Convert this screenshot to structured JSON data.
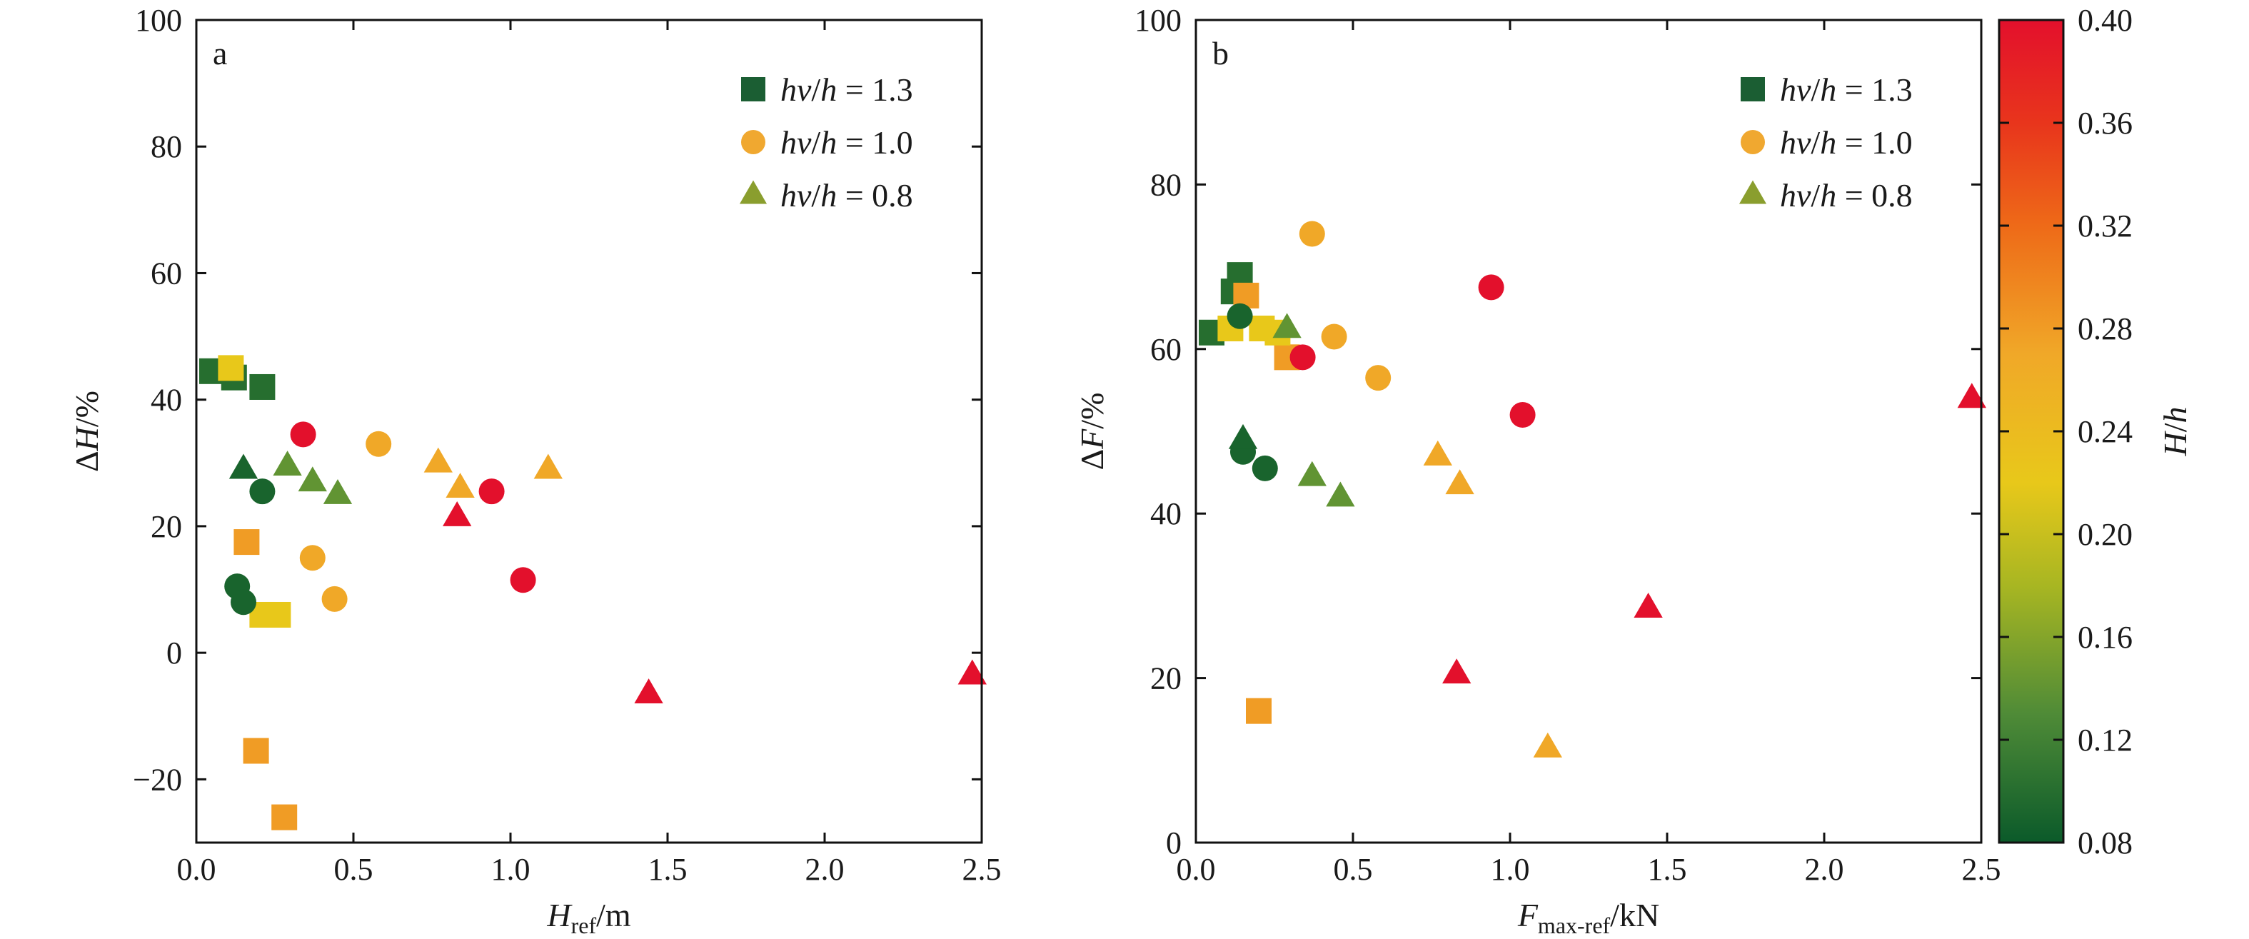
{
  "chart_data": [
    {
      "type": "scatter",
      "panel_label": "a",
      "xlabel_parts": [
        "H",
        "ref",
        "/m"
      ],
      "ylabel_parts": [
        "Δ",
        "H",
        "/%"
      ],
      "xlim": [
        0,
        2.5
      ],
      "ylim": [
        -30,
        100
      ],
      "xticks": [
        0,
        0.5,
        1.0,
        1.5,
        2.0,
        2.5
      ],
      "xtick_labels": [
        "0.0",
        "0.5",
        "1.0",
        "1.5",
        "2.0",
        "2.5"
      ],
      "yticks": [
        -20,
        0,
        20,
        40,
        60,
        80,
        100
      ],
      "ytick_labels": [
        "−20",
        "0",
        "20",
        "40",
        "60",
        "80",
        "100"
      ],
      "legend_position": "top-right",
      "grid": false,
      "series": [
        {
          "name": "hv/h = 1.3",
          "name_parts": [
            "hv",
            "/",
            "h",
            " = 1.3"
          ],
          "marker": "square",
          "legend_color": "#1b5e33",
          "points": [
            {
              "x": 0.05,
              "y": 44.5,
              "hh": 0.1
            },
            {
              "x": 0.12,
              "y": 43.5,
              "hh": 0.1
            },
            {
              "x": 0.21,
              "y": 42.0,
              "hh": 0.1
            },
            {
              "x": 0.19,
              "y": -15.5,
              "hh": 0.28
            },
            {
              "x": 0.16,
              "y": 17.5,
              "hh": 0.28
            },
            {
              "x": 0.28,
              "y": -26.0,
              "hh": 0.28
            },
            {
              "x": 0.11,
              "y": 45.0,
              "hh": 0.22
            },
            {
              "x": 0.21,
              "y": 6.0,
              "hh": 0.22
            },
            {
              "x": 0.26,
              "y": 6.0,
              "hh": 0.22
            }
          ]
        },
        {
          "name": "hv/h = 1.0",
          "name_parts": [
            "hv",
            "/",
            "h",
            " = 1.0"
          ],
          "marker": "circle",
          "legend_color": "#f0a830",
          "points": [
            {
              "x": 0.13,
              "y": 10.5,
              "hh": 0.09
            },
            {
              "x": 0.15,
              "y": 8.0,
              "hh": 0.09
            },
            {
              "x": 0.21,
              "y": 25.5,
              "hh": 0.09
            },
            {
              "x": 0.37,
              "y": 15.0,
              "hh": 0.27
            },
            {
              "x": 0.44,
              "y": 8.5,
              "hh": 0.27
            },
            {
              "x": 0.58,
              "y": 33.0,
              "hh": 0.27
            },
            {
              "x": 0.34,
              "y": 34.5,
              "hh": 0.4
            },
            {
              "x": 0.94,
              "y": 25.5,
              "hh": 0.4
            },
            {
              "x": 1.04,
              "y": 11.5,
              "hh": 0.4
            }
          ]
        },
        {
          "name": "hv/h = 0.8",
          "name_parts": [
            "hv",
            "/",
            "h",
            " = 0.8"
          ],
          "marker": "triangle",
          "legend_color": "#8a9e2e",
          "points": [
            {
              "x": 0.15,
              "y": 29.0,
              "hh": 0.09
            },
            {
              "x": 0.29,
              "y": 29.5,
              "hh": 0.14
            },
            {
              "x": 0.37,
              "y": 27.0,
              "hh": 0.14
            },
            {
              "x": 0.45,
              "y": 25.0,
              "hh": 0.14
            },
            {
              "x": 0.77,
              "y": 30.0,
              "hh": 0.27
            },
            {
              "x": 0.84,
              "y": 26.0,
              "hh": 0.27
            },
            {
              "x": 1.12,
              "y": 29.0,
              "hh": 0.27
            },
            {
              "x": 0.83,
              "y": 21.5,
              "hh": 0.4
            },
            {
              "x": 1.44,
              "y": -6.5,
              "hh": 0.4
            },
            {
              "x": 2.47,
              "y": -3.5,
              "hh": 0.4
            }
          ]
        }
      ]
    },
    {
      "type": "scatter",
      "panel_label": "b",
      "xlabel_parts": [
        "F",
        "max-ref",
        "/kN"
      ],
      "ylabel_parts": [
        "Δ",
        "F",
        "/%"
      ],
      "xlim": [
        0,
        2.5
      ],
      "ylim": [
        0,
        100
      ],
      "xticks": [
        0,
        0.5,
        1.0,
        1.5,
        2.0,
        2.5
      ],
      "xtick_labels": [
        "0.0",
        "0.5",
        "1.0",
        "1.5",
        "2.0",
        "2.5"
      ],
      "yticks": [
        0,
        20,
        40,
        60,
        80,
        100
      ],
      "ytick_labels": [
        "0",
        "20",
        "40",
        "60",
        "80",
        "100"
      ],
      "legend_position": "top-right",
      "grid": false,
      "series": [
        {
          "name": "hv/h = 1.3",
          "name_parts": [
            "hv",
            "/",
            "h",
            " = 1.3"
          ],
          "marker": "square",
          "legend_color": "#1b5e33",
          "points": [
            {
              "x": 0.05,
              "y": 62.0,
              "hh": 0.1
            },
            {
              "x": 0.12,
              "y": 67.0,
              "hh": 0.1
            },
            {
              "x": 0.14,
              "y": 69.0,
              "hh": 0.1
            },
            {
              "x": 0.16,
              "y": 66.5,
              "hh": 0.28
            },
            {
              "x": 0.29,
              "y": 59.0,
              "hh": 0.28
            },
            {
              "x": 0.2,
              "y": 16.0,
              "hh": 0.28
            },
            {
              "x": 0.11,
              "y": 62.5,
              "hh": 0.22
            },
            {
              "x": 0.21,
              "y": 62.5,
              "hh": 0.22
            },
            {
              "x": 0.26,
              "y": 62.0,
              "hh": 0.22
            }
          ]
        },
        {
          "name": "hv/h = 1.0",
          "name_parts": [
            "hv",
            "/",
            "h",
            " = 1.0"
          ],
          "marker": "circle",
          "legend_color": "#f0a830",
          "points": [
            {
              "x": 0.14,
              "y": 64.0,
              "hh": 0.09
            },
            {
              "x": 0.15,
              "y": 47.5,
              "hh": 0.09
            },
            {
              "x": 0.22,
              "y": 45.5,
              "hh": 0.09
            },
            {
              "x": 0.37,
              "y": 74.0,
              "hh": 0.27
            },
            {
              "x": 0.44,
              "y": 61.5,
              "hh": 0.27
            },
            {
              "x": 0.58,
              "y": 56.5,
              "hh": 0.27
            },
            {
              "x": 0.34,
              "y": 59.0,
              "hh": 0.4
            },
            {
              "x": 0.94,
              "y": 67.5,
              "hh": 0.4
            },
            {
              "x": 1.04,
              "y": 52.0,
              "hh": 0.4
            }
          ]
        },
        {
          "name": "hv/h = 0.8",
          "name_parts": [
            "hv",
            "/",
            "h",
            " = 0.8"
          ],
          "marker": "triangle",
          "legend_color": "#8a9e2e",
          "points": [
            {
              "x": 0.15,
              "y": 49.0,
              "hh": 0.09
            },
            {
              "x": 0.29,
              "y": 62.5,
              "hh": 0.14
            },
            {
              "x": 0.37,
              "y": 44.5,
              "hh": 0.14
            },
            {
              "x": 0.46,
              "y": 42.0,
              "hh": 0.14
            },
            {
              "x": 0.77,
              "y": 47.0,
              "hh": 0.27
            },
            {
              "x": 0.84,
              "y": 43.5,
              "hh": 0.27
            },
            {
              "x": 1.12,
              "y": 11.5,
              "hh": 0.27
            },
            {
              "x": 0.83,
              "y": 20.5,
              "hh": 0.4
            },
            {
              "x": 1.44,
              "y": 28.5,
              "hh": 0.4
            },
            {
              "x": 2.47,
              "y": 54.0,
              "hh": 0.4
            }
          ]
        }
      ]
    }
  ],
  "colorbar": {
    "label_parts": [
      "H",
      "/",
      "h"
    ],
    "range": [
      0.08,
      0.4
    ],
    "ticks": [
      0.08,
      0.12,
      0.16,
      0.2,
      0.24,
      0.28,
      0.32,
      0.36,
      0.4
    ],
    "tick_labels": [
      "0.08",
      "0.12",
      "0.16",
      "0.20",
      "0.24",
      "0.28",
      "0.32",
      "0.36",
      "0.40"
    ],
    "color_stops": [
      {
        "value": 0.08,
        "color": "#0b5a2a"
      },
      {
        "value": 0.13,
        "color": "#4f8b37"
      },
      {
        "value": 0.18,
        "color": "#a8b622"
      },
      {
        "value": 0.22,
        "color": "#e8c81a"
      },
      {
        "value": 0.27,
        "color": "#f0a828"
      },
      {
        "value": 0.32,
        "color": "#ee6a18"
      },
      {
        "value": 0.36,
        "color": "#e8351c"
      },
      {
        "value": 0.4,
        "color": "#e3102c"
      }
    ]
  }
}
